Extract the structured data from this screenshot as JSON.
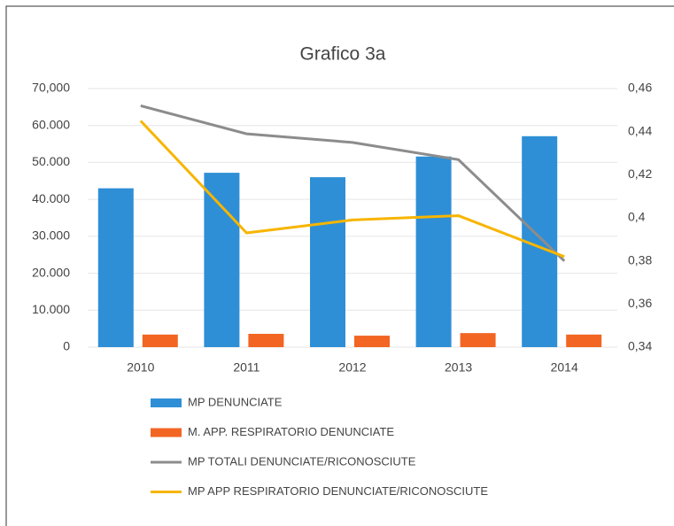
{
  "chart_data": {
    "type": "bar",
    "title": "Grafico 3a",
    "categories": [
      "2010",
      "2011",
      "2012",
      "2013",
      "2014"
    ],
    "series": [
      {
        "name": "MP DENUNCIATE",
        "type": "bar",
        "color": "#2e8fd6",
        "values": [
          43000,
          47200,
          46000,
          51600,
          57100
        ]
      },
      {
        "name": "M. APP. RESPIRATORIO DENUNCIATE",
        "type": "bar",
        "color": "#f26522",
        "values": [
          3400,
          3600,
          3100,
          3800,
          3400
        ]
      },
      {
        "name": "MP TOTALI DENUNCIATE/RICONOSCIUTE",
        "type": "line",
        "axis": "y2",
        "color": "#8c8c8c",
        "values": [
          0.452,
          0.439,
          0.435,
          0.427,
          0.38
        ]
      },
      {
        "name": "MP APP RESPIRATORIO DENUNCIATE/RICONOSCIUTE",
        "type": "line",
        "axis": "y2",
        "color": "#f7b500",
        "values": [
          0.445,
          0.393,
          0.399,
          0.401,
          0.382
        ]
      }
    ],
    "ylim": [
      0,
      70000
    ],
    "yticks": [
      0,
      {
        "value": 10000,
        "label": "10.000"
      },
      {
        "value": 20000,
        "label": "20.000"
      },
      {
        "value": 30000,
        "label": "30.000"
      },
      {
        "value": 40000,
        "label": "40.000"
      },
      {
        "value": 50000,
        "label": "50.000"
      },
      {
        "value": 60000,
        "label": "60.000"
      },
      {
        "value": 70000,
        "label": "70,000"
      }
    ],
    "y2lim": [
      0.34,
      0.46
    ],
    "y2ticks": [
      {
        "value": 0.34,
        "label": "0,34"
      },
      {
        "value": 0.36,
        "label": "0,36"
      },
      {
        "value": 0.38,
        "label": "0,38"
      },
      {
        "value": 0.4,
        "label": "0,4"
      },
      {
        "value": 0.42,
        "label": "0,42"
      },
      {
        "value": 0.44,
        "label": "0,44"
      },
      {
        "value": 0.46,
        "label": "0,46"
      }
    ],
    "grid": true,
    "legend": "bottom"
  }
}
